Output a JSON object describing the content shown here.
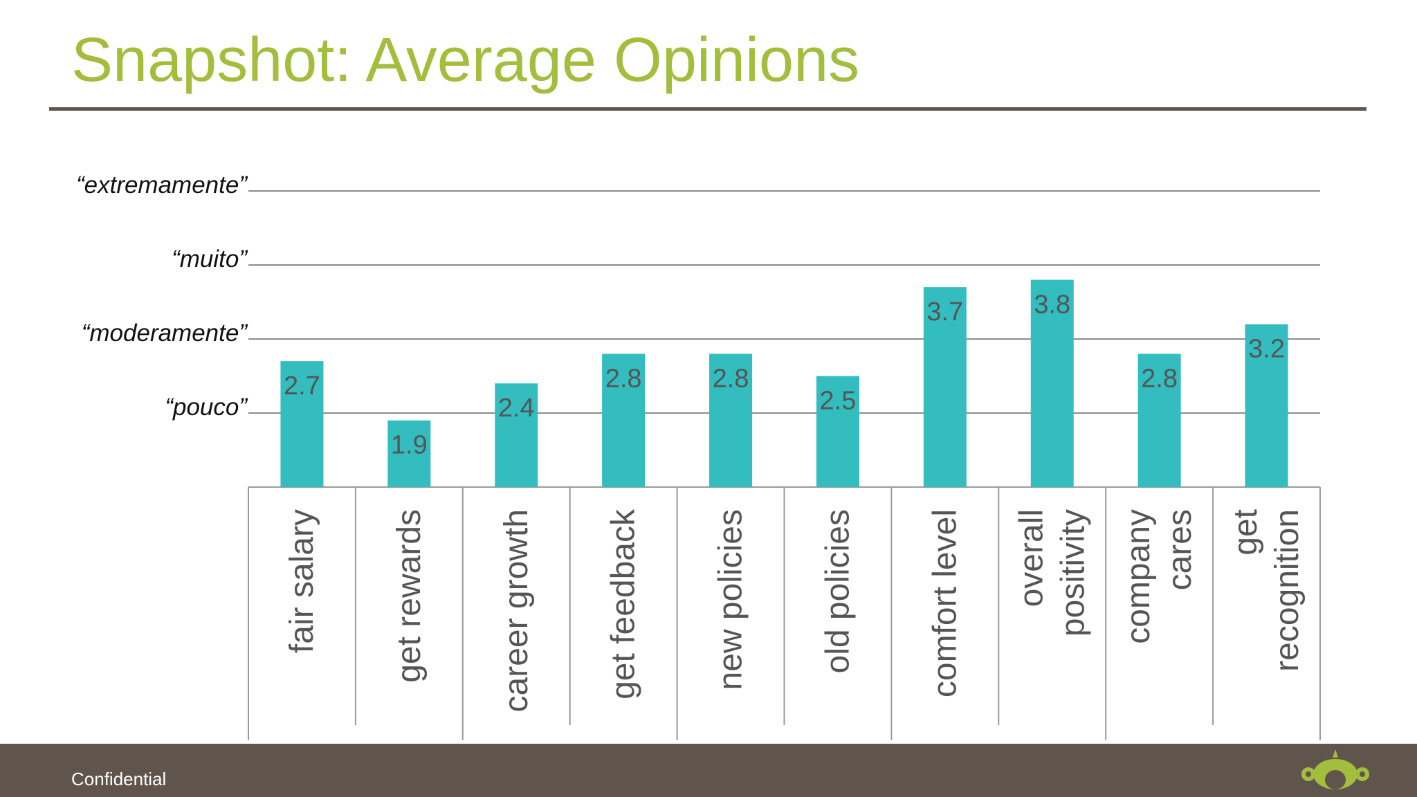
{
  "slide": {
    "title": "Snapshot: Average Opinions",
    "footer_text": "Confidential"
  },
  "colors": {
    "title": "#a3bd3c",
    "bar": "#33bdbf",
    "bar_label": "#555555",
    "gridline": "#8c8c8c",
    "footer_bg": "#5f554c",
    "logo": "#a3bd3c"
  },
  "icons": {
    "logo": "surveymonkey-logo-icon"
  },
  "chart_data": {
    "type": "bar",
    "categories": [
      "fair salary",
      "get rewards",
      "career growth",
      "get feedback",
      "new policies",
      "old policies",
      "comfort level",
      "overall positivity",
      "company cares",
      "get recognition"
    ],
    "category_labels": [
      [
        "fair salary"
      ],
      [
        "get rewards"
      ],
      [
        "career growth"
      ],
      [
        "get feedback"
      ],
      [
        "new policies"
      ],
      [
        "old policies"
      ],
      [
        "comfort level"
      ],
      [
        "overall",
        "positivity"
      ],
      [
        "company",
        "cares"
      ],
      [
        "get",
        "recognition"
      ]
    ],
    "values": [
      2.7,
      1.9,
      2.4,
      2.8,
      2.8,
      2.5,
      3.7,
      3.8,
      2.8,
      3.2
    ],
    "value_labels": [
      "2.7",
      "1.9",
      "2.4",
      "2.8",
      "2.8",
      "2.5",
      "3.7",
      "3.8",
      "2.8",
      "3.2"
    ],
    "y_gridlines": [
      {
        "value": 2,
        "label": "“pouco”"
      },
      {
        "value": 3,
        "label": "“moderamente”"
      },
      {
        "value": 4,
        "label": "“muito”"
      },
      {
        "value": 5,
        "label": "“extremamente”"
      }
    ],
    "ylim": [
      1,
      5
    ],
    "grid": true,
    "data_labels": true
  }
}
